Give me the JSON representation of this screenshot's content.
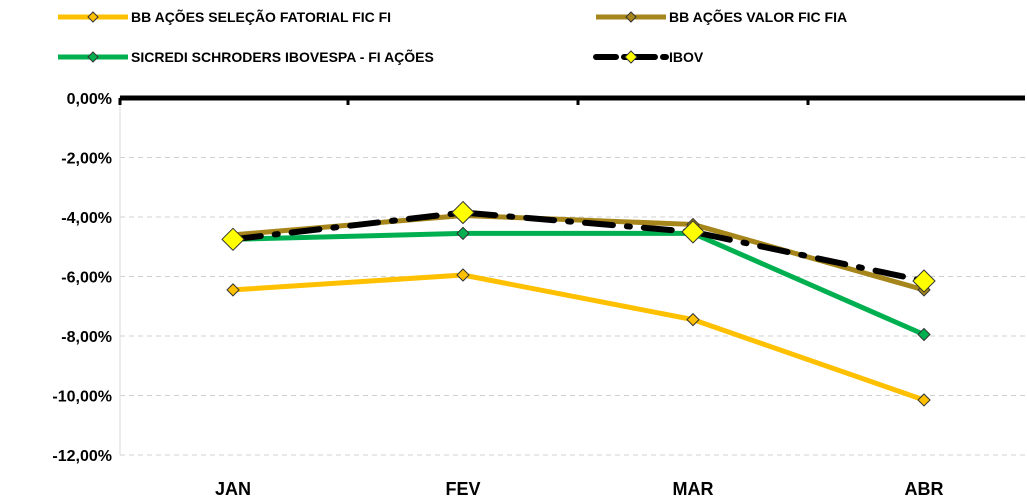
{
  "chart_data": {
    "type": "line",
    "title": "",
    "xlabel": "",
    "ylabel": "",
    "categories": [
      "JAN",
      "FEV",
      "MAR",
      "ABR"
    ],
    "ylim": [
      -12,
      0
    ],
    "yticks": [
      0,
      -2,
      -4,
      -6,
      -8,
      -10,
      -12
    ],
    "ytick_labels": [
      "0,00%",
      "-2,00%",
      "-4,00%",
      "-6,00%",
      "-8,00%",
      "-10,00%",
      "-12,00%"
    ],
    "grid": "horizontal dashed",
    "legend_position": "top",
    "series": [
      {
        "name": "BB AÇÕES SELEÇÃO FATORIAL FIC FI",
        "values": [
          -6.45,
          -5.95,
          -7.45,
          -10.15
        ],
        "color": "#FFC000",
        "marker": "diamond",
        "style": "solid"
      },
      {
        "name": "BB AÇÕES VALOR FIC FIA",
        "values": [
          -4.6,
          -3.95,
          -4.25,
          -6.45
        ],
        "color": "#A6861B",
        "marker": "diamond",
        "style": "solid"
      },
      {
        "name": "SICREDI SCHRODERS IBOVESPA - FI AÇÕES",
        "values": [
          -4.75,
          -4.55,
          -4.55,
          -7.95
        ],
        "color": "#00B050",
        "marker": "diamond",
        "style": "solid"
      },
      {
        "name": "IBOV",
        "values": [
          -4.75,
          -3.85,
          -4.5,
          -6.15
        ],
        "color": "#000000",
        "marker": "diamond-large",
        "marker_color": "#FFFF00",
        "style": "dash-dot"
      }
    ]
  }
}
